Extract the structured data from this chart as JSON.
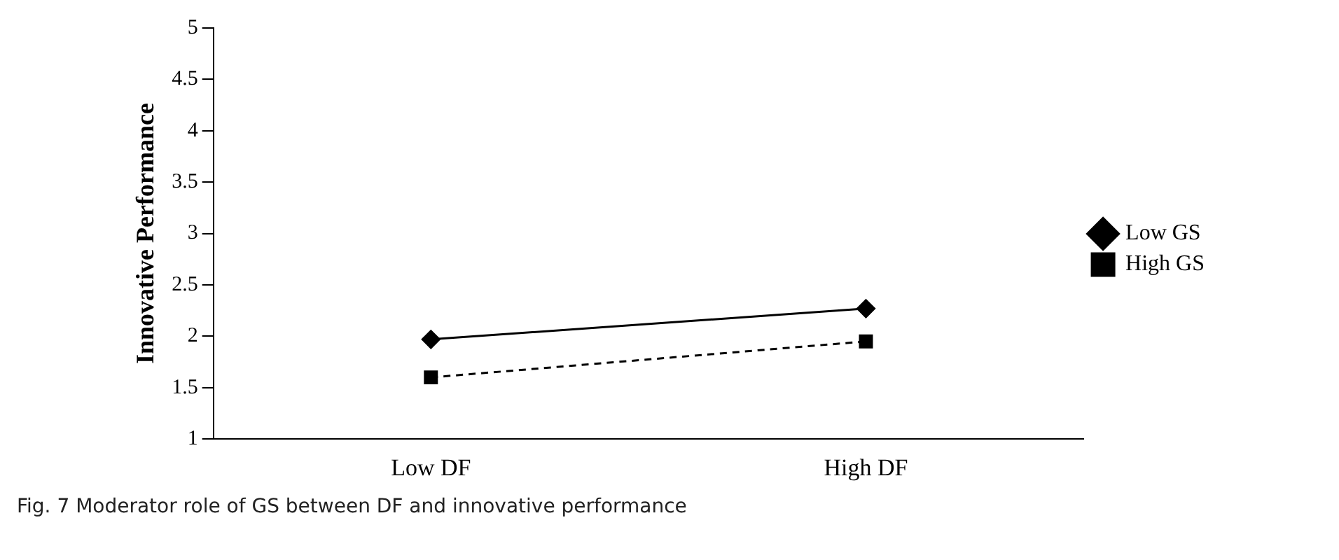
{
  "chart_data": {
    "type": "line",
    "ylabel": "Innovative Performance",
    "categories": [
      "Low DF",
      "High DF"
    ],
    "series": [
      {
        "name": "Low GS",
        "color": "#000000",
        "values": [
          1.97,
          2.27
        ],
        "marker": "diamond",
        "line_style": "solid"
      },
      {
        "name": "High GS",
        "color": "#000000",
        "values": [
          1.6,
          1.95
        ],
        "marker": "square",
        "line_style": "dashed"
      }
    ],
    "ylim": [
      1,
      5
    ],
    "yticks": [
      1,
      1.5,
      2,
      2.5,
      3,
      3.5,
      4,
      4.5,
      5
    ],
    "grid": false,
    "legend": "right",
    "annotations": [
      "Fig. 7  Moderator role of GS between DF and innovative performance"
    ]
  }
}
